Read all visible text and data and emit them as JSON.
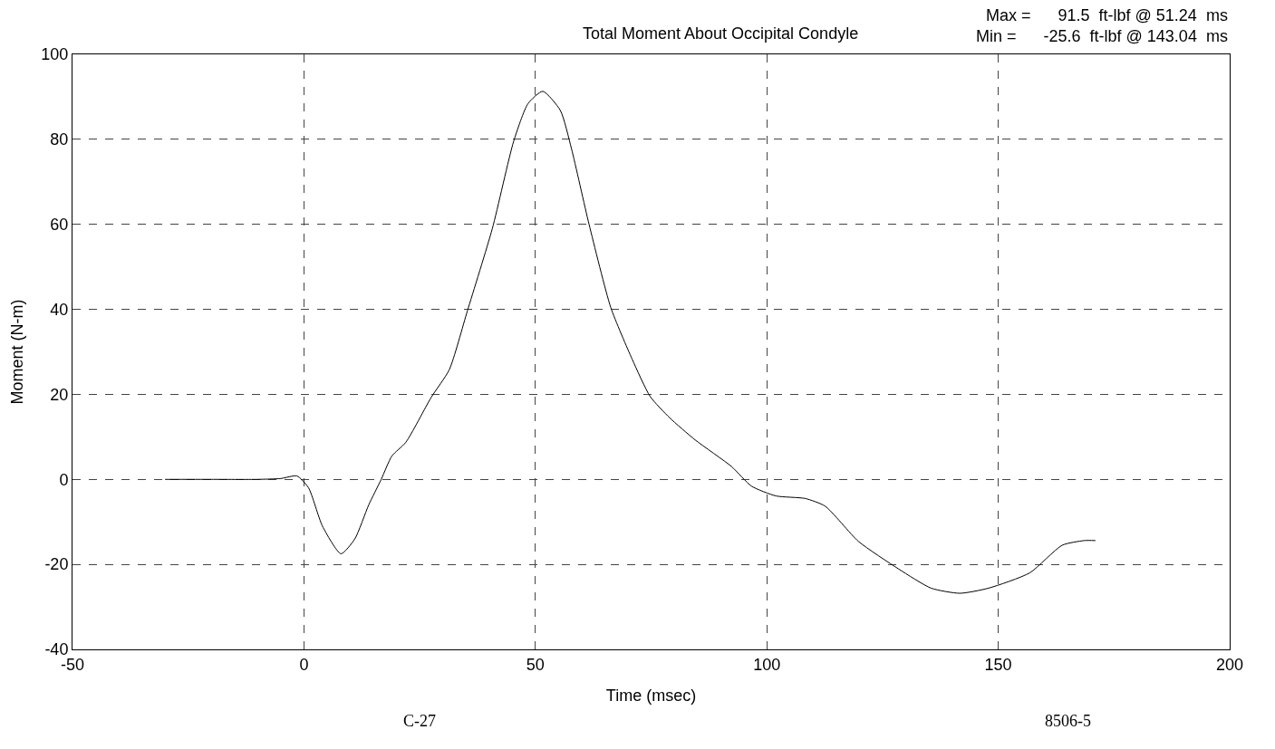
{
  "chart_data": {
    "type": "line",
    "title": "Total Moment About Occipital Condyle",
    "xlabel": "Time (msec)",
    "ylabel": "Moment (N-m)",
    "annotations": [
      "Max =      91.5  ft-lbf @ 51.24  ms",
      "Min =      -25.6  ft-lbf @ 143.04  ms",
      "C-27",
      "8506-5"
    ],
    "x": [
      -30,
      -20,
      -10,
      -5,
      -1.5,
      1,
      4,
      8,
      11,
      14,
      16.7,
      19,
      22,
      27.5,
      31.4,
      35.3,
      40.7,
      45.3,
      48.4,
      51.6,
      55.4,
      57.8,
      61.6,
      66.3,
      70.9,
      74.8,
      79,
      84.5,
      92.4,
      96.7,
      102,
      108.3,
      112.6,
      119.8,
      128.5,
      135.5,
      141.7,
      147.9,
      156.8,
      163.8,
      168.6,
      171
    ],
    "series": [
      {
        "color": "#000000",
        "values": [
          0,
          0,
          0,
          0.2,
          0.8,
          -2,
          -11,
          -17.5,
          -14,
          -6,
          0,
          5.5,
          8.7,
          19.3,
          25.8,
          39.6,
          59,
          79.5,
          88.4,
          91.3,
          86.8,
          77.8,
          60,
          40.4,
          28.3,
          19.5,
          14.5,
          9.3,
          3,
          -1.6,
          -3.9,
          -4.5,
          -6.3,
          -14.6,
          -21.1,
          -25.6,
          -26.8,
          -25.6,
          -22,
          -15.5,
          -14.4,
          -14.4
        ]
      }
    ],
    "xlim": [
      -50,
      200
    ],
    "xticks": [
      -50,
      0,
      50,
      100,
      150,
      200
    ],
    "ylim": [
      -40,
      100
    ],
    "yticks": [
      -40,
      -20,
      0,
      20,
      40,
      60,
      80,
      100
    ],
    "grid": true,
    "marker": "none",
    "line_style": "solid"
  }
}
